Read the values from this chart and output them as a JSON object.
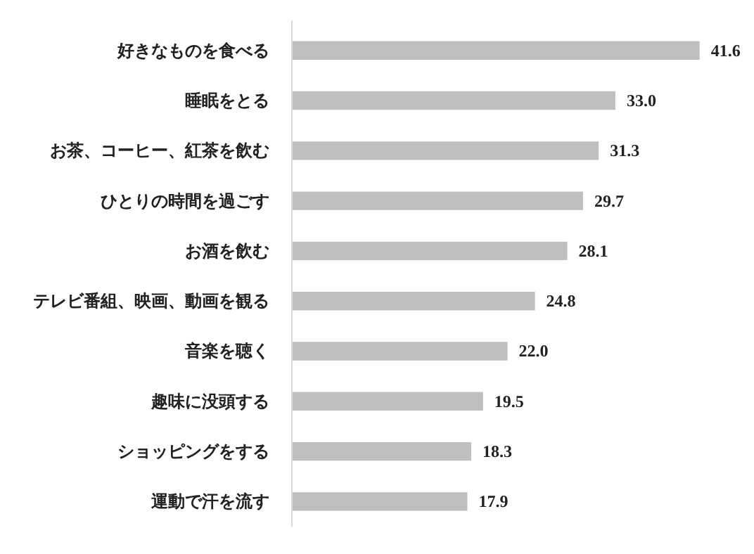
{
  "chart_data": {
    "type": "bar",
    "orientation": "horizontal",
    "grid": false,
    "value_labels": [
      "41.6",
      "33.0",
      "31.3",
      "29.7",
      "28.1",
      "24.8",
      "22.0",
      "19.5",
      "18.3",
      "17.9"
    ],
    "categories": [
      "好きなものを食べる",
      "睡眠をとる",
      "お茶、コーヒー、紅茶を飲む",
      "ひとりの時間を過ごす",
      "お酒を飲む",
      "テレビ番組、映画、動画を観る",
      "音楽を聴く",
      "趣味に没頭する",
      "ショッピングをする",
      "運動で汗を流す"
    ],
    "values": [
      41.6,
      33.0,
      31.3,
      29.7,
      28.1,
      24.8,
      22.0,
      19.5,
      18.3,
      17.9
    ],
    "color": "#bfbfbf"
  }
}
